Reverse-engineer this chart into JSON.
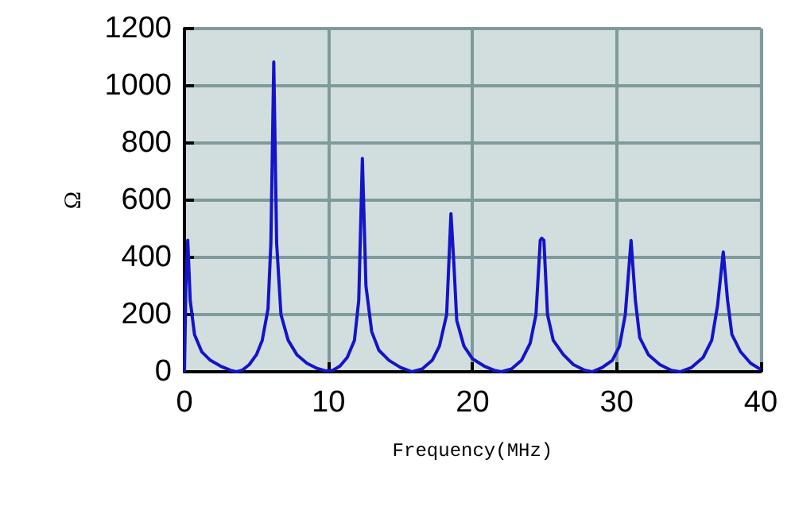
{
  "chart_data": {
    "type": "line",
    "xlabel": "Frequency(MHz)",
    "ylabel": "Ω",
    "xlim": [
      0,
      40
    ],
    "xticks": [
      0,
      10,
      20,
      30,
      40
    ],
    "ylim": [
      0,
      1200
    ],
    "yticks": [
      0,
      200,
      400,
      600,
      800,
      1000,
      1200
    ],
    "grid": true,
    "marker": "none",
    "line_style": "solid",
    "series": [
      {
        "color": "#1414c8",
        "x": [
          0,
          0.1,
          0.23,
          0.4,
          0.7,
          1.2,
          1.8,
          2.5,
          3.2,
          3.6,
          4.0,
          4.5,
          5.0,
          5.4,
          5.8,
          6.0,
          6.2,
          6.4,
          6.7,
          7.2,
          7.8,
          8.5,
          9.2,
          9.8,
          10.3,
          10.8,
          11.3,
          11.8,
          12.1,
          12.35,
          12.6,
          13.0,
          13.5,
          14.2,
          15.0,
          15.8,
          16.5,
          17.2,
          17.7,
          18.2,
          18.5,
          18.7,
          18.9,
          19.4,
          20.0,
          20.8,
          21.5,
          22.0,
          22.7,
          23.4,
          24.0,
          24.4,
          24.7,
          24.8,
          24.95,
          25.2,
          25.6,
          26.3,
          27.0,
          27.8,
          28.3,
          29.0,
          29.7,
          30.2,
          30.6,
          31.0,
          31.3,
          31.6,
          32.2,
          33.0,
          33.8,
          34.4,
          35.2,
          36.0,
          36.6,
          37.0,
          37.4,
          37.7,
          38.0,
          38.6,
          39.3,
          40.0
        ],
        "values": [
          0,
          300,
          460,
          250,
          130,
          70,
          40,
          20,
          5,
          0,
          5,
          25,
          60,
          110,
          220,
          450,
          1083,
          450,
          200,
          110,
          60,
          30,
          12,
          3,
          5,
          20,
          50,
          110,
          250,
          746,
          300,
          140,
          75,
          40,
          15,
          0,
          10,
          40,
          90,
          200,
          553,
          380,
          180,
          90,
          45,
          20,
          5,
          0,
          10,
          40,
          100,
          200,
          460,
          467,
          460,
          200,
          110,
          60,
          25,
          5,
          0,
          15,
          40,
          90,
          200,
          459,
          250,
          120,
          60,
          25,
          5,
          0,
          15,
          50,
          110,
          230,
          419,
          250,
          130,
          70,
          30,
          8
        ]
      }
    ]
  }
}
